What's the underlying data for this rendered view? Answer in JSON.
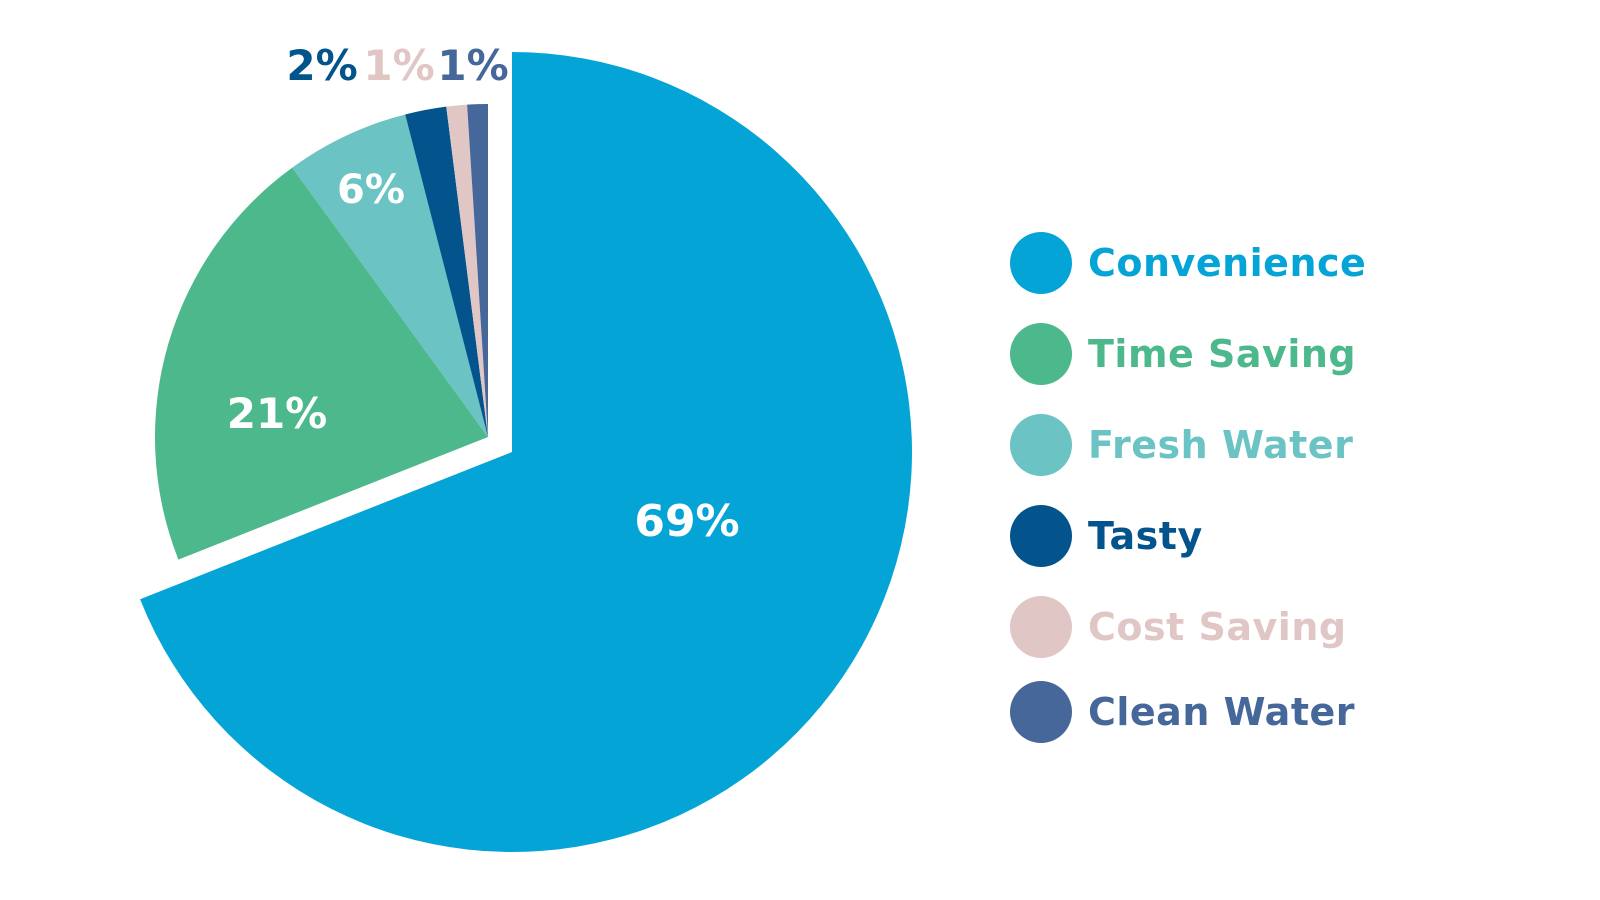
{
  "chart_data": {
    "type": "pie",
    "title": "",
    "categories": [
      "Convenience",
      "Time Saving",
      "Fresh Water",
      "Tasty",
      "Cost Saving",
      "Clean Water"
    ],
    "values": [
      69,
      21,
      6,
      2,
      1,
      1
    ],
    "labels": [
      "69%",
      "21%",
      "6%",
      "2%",
      "1%",
      "1%"
    ],
    "colors": [
      "#04a5d6",
      "#4cb88c",
      "#6bc3c4",
      "#03538c",
      "#e0c6c5",
      "#46679a"
    ],
    "exploded": [
      "Convenience"
    ],
    "legend_position": "right",
    "start_angle": "12 o'clock",
    "direction": "clockwise"
  },
  "legend": {
    "items": [
      {
        "label": "Convenience",
        "color": "#04a5d6"
      },
      {
        "label": "Time Saving",
        "color": "#4cb88c"
      },
      {
        "label": "Fresh Water",
        "color": "#6bc3c4"
      },
      {
        "label": "Tasty",
        "color": "#03538c"
      },
      {
        "label": "Cost Saving",
        "color": "#e0c6c5"
      },
      {
        "label": "Clean Water",
        "color": "#46679a"
      }
    ]
  }
}
